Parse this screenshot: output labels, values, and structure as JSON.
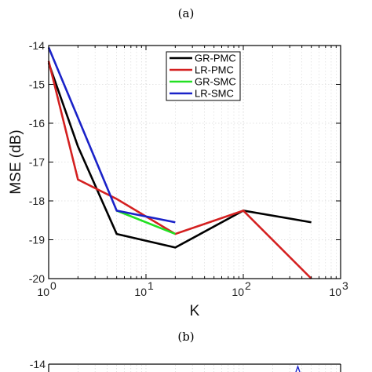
{
  "panel_labels": {
    "top": "(a)",
    "bottom": "(b)"
  },
  "chart_data": [
    {
      "type": "line",
      "xscale": "log",
      "xlim": [
        1,
        1000
      ],
      "ylim": [
        -20,
        -14
      ],
      "xlabel": "K",
      "ylabel": "MSE (dB)",
      "x_ticks": [
        {
          "value": 1,
          "base": "10",
          "exp": "0"
        },
        {
          "value": 10,
          "base": "10",
          "exp": "1"
        },
        {
          "value": 100,
          "base": "10",
          "exp": "2"
        },
        {
          "value": 1000,
          "base": "10",
          "exp": "3"
        }
      ],
      "y_ticks": [
        -14,
        -15,
        -16,
        -17,
        -18,
        -19,
        -20
      ],
      "grid": true,
      "legend_position": "top-right",
      "series": [
        {
          "name": "GR-PMC",
          "color": "#000000",
          "x": [
            1,
            2,
            5,
            20,
            100,
            500
          ],
          "y": [
            -14.45,
            -16.6,
            -18.85,
            -19.2,
            -18.25,
            -18.55
          ]
        },
        {
          "name": "LR-PMC",
          "color": "#d42020",
          "x": [
            1,
            2,
            5,
            20,
            100,
            500
          ],
          "y": [
            -14.4,
            -17.45,
            -17.95,
            -18.85,
            -18.25,
            -20.0
          ]
        },
        {
          "name": "GR-SMC",
          "color": "#22e022",
          "x": [
            5,
            20
          ],
          "y": [
            -18.25,
            -18.85
          ]
        },
        {
          "name": "LR-SMC",
          "color": "#1a22c8",
          "x": [
            1,
            5,
            20
          ],
          "y": [
            -14.05,
            -18.25,
            -18.55
          ]
        }
      ]
    },
    {
      "type": "line",
      "y_ticks": [
        -14
      ],
      "note_visible_portion": "top edge only"
    }
  ]
}
